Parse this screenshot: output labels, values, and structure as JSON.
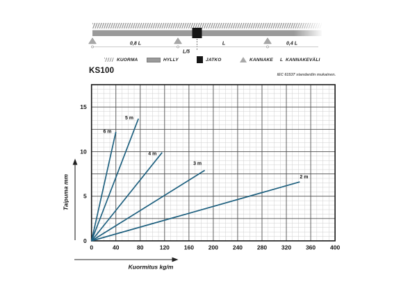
{
  "title": "KS100",
  "standard_note": "IEC 61537 standardin mukainen.",
  "diagram": {
    "labels": {
      "span1": "0,8 L",
      "joint_offset": "L/5",
      "span2": "L",
      "span3": "0,4 L"
    },
    "legend": [
      {
        "label": "KUORMA",
        "swatch": "hatch-swatch"
      },
      {
        "label": "HYLLY",
        "swatch": "tray-swatch"
      },
      {
        "label": "JATKO",
        "swatch": "joint-swatch"
      },
      {
        "label": "KANNAKE",
        "swatch": "support-swatch"
      },
      {
        "label": "KANNAKEVÄLI",
        "swatch": "letter-swatch",
        "swatch_text": "L"
      }
    ]
  },
  "chart_data": {
    "type": "line",
    "title": "KS100",
    "xlabel": "Kuormitus kg/m",
    "ylabel": "Taipuma mm",
    "xlim": [
      0,
      400
    ],
    "ylim": [
      0,
      17.5
    ],
    "x_ticks": [
      0,
      40,
      80,
      120,
      160,
      200,
      240,
      280,
      320,
      360,
      400
    ],
    "y_ticks": [
      0,
      5,
      10,
      15
    ],
    "x_major_step": 40,
    "x_minor_step": 10,
    "y_major_step": 2.5,
    "y_minor_step": 0.5,
    "grid": true,
    "legend_position": "inline-labels",
    "line_color": "#1e607f",
    "series": [
      {
        "name": "6 m",
        "points": [
          [
            0,
            0
          ],
          [
            40,
            12.2
          ]
        ],
        "label_at": [
          26,
          12.3
        ]
      },
      {
        "name": "5 m",
        "points": [
          [
            0,
            0
          ],
          [
            77,
            13.7
          ]
        ],
        "label_at": [
          62,
          13.8
        ]
      },
      {
        "name": "4 m",
        "points": [
          [
            0,
            0
          ],
          [
            116,
            9.9
          ]
        ],
        "label_at": [
          100,
          9.8
        ]
      },
      {
        "name": "3 m",
        "points": [
          [
            0,
            0
          ],
          [
            186,
            7.9
          ]
        ],
        "label_at": [
          174,
          8.7
        ]
      },
      {
        "name": "2 m",
        "points": [
          [
            0,
            0
          ],
          [
            342,
            6.6
          ]
        ],
        "label_at": [
          349,
          7.2
        ]
      }
    ]
  }
}
